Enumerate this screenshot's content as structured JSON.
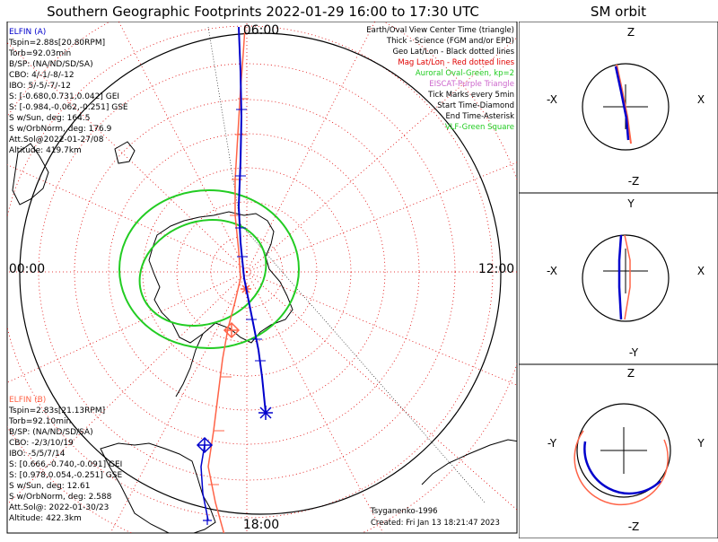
{
  "title": "Southern Geographic Footprints 2022-01-29 16:00 to 17:30 UTC",
  "sm_title": "SM orbit",
  "time_labels": {
    "top": "06:00",
    "left": "00:00",
    "right": "12:00",
    "bottom": "18:00"
  },
  "legend": [
    {
      "text": "Earth/Oval View Center Time (triangle)",
      "color": "#000000"
    },
    {
      "text": "Thick - Science (FGM and/or EPD)",
      "color": "#000000"
    },
    {
      "text": "Geo Lat/Lon - Black dotted lines",
      "color": "#000000"
    },
    {
      "text": "Mag Lat/Lon - Red dotted lines",
      "color": "#e00000"
    },
    {
      "text": "Auroral Oval-Green, kp=2",
      "color": "#22cc22"
    },
    {
      "text": "EISCAT-Purple Triangle",
      "color": "#cc66cc"
    },
    {
      "text": "Tick Marks every 5min",
      "color": "#000000"
    },
    {
      "text": "Start Time-Diamond",
      "color": "#000000"
    },
    {
      "text": "End Time-Asterisk",
      "color": "#000000"
    },
    {
      "text": "VLF-Green Square",
      "color": "#22cc22"
    }
  ],
  "elfin_a": {
    "name": "ELFIN (A)",
    "color": "#0000cc",
    "lines": [
      "Tspin=2.88s[20.80RPM]",
      "Torb=92.03min",
      "B/SP: (NA/ND/SD/SA)",
      "CBO: 4/-1/-8/-12",
      "IBO: 5/-5/-7/-12",
      "S: [-0.680,0.731,0.042] GEI",
      "S: [-0.984,-0.062,-0.251] GSE",
      "S w/Sun, deg: 164.5",
      "S w/OrbNorm, deg: 176.9",
      "Att.Sol@2022-01-27/08",
      "Altitude: 419.7km"
    ]
  },
  "elfin_b": {
    "name": "ELFIN (B)",
    "color": "#ff6347",
    "lines": [
      "Tspin=2.83s[21.13RPM]",
      "Torb=92.10min",
      "B/SP: (NA/ND/SD/SA)",
      "CBO: -2/3/10/19",
      "IBO: -5/5/7/14",
      "S: [0.666,-0.740,-0.091] GEI",
      "S: [0.978,0.054,-0.251] GSE",
      "S w/Sun, deg: 12.61",
      "S w/OrbNorm, deg: 2.588",
      "Att.Sol@: 2022-01-30/23",
      "Altitude: 422.3km"
    ]
  },
  "footer": {
    "model": "Tsyganenko-1996",
    "created": "Created: Fri Jan 13 18:21:47 2023"
  },
  "sm_panels": [
    {
      "top": "Z",
      "bottom": "-Z",
      "left": "-X",
      "right": "X"
    },
    {
      "top": "Y",
      "bottom": "-Y",
      "left": "-X",
      "right": "X"
    },
    {
      "top": "Z",
      "bottom": "-Z",
      "left": "-Y",
      "right": "Y"
    }
  ],
  "colors": {
    "elfin_a": "#0000cc",
    "elfin_b": "#ff6347",
    "oval": "#22cc22",
    "mag_grid": "#e00000"
  }
}
